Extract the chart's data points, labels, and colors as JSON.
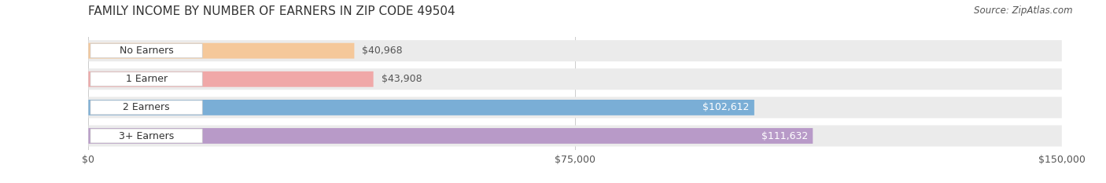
{
  "title": "FAMILY INCOME BY NUMBER OF EARNERS IN ZIP CODE 49504",
  "source": "Source: ZipAtlas.com",
  "categories": [
    "No Earners",
    "1 Earner",
    "2 Earners",
    "3+ Earners"
  ],
  "values": [
    40968,
    43908,
    102612,
    111632
  ],
  "labels": [
    "$40,968",
    "$43,908",
    "$102,612",
    "$111,632"
  ],
  "bar_colors": [
    "#f5c89a",
    "#f0a8a8",
    "#7aaed6",
    "#b89ac8"
  ],
  "row_bg_colors": [
    "#f5f5f5",
    "#f5f5f5",
    "#f5f5f5",
    "#f5f5f5"
  ],
  "label_bg_color": "#ffffff",
  "xmax": 150000,
  "xticks": [
    0,
    75000,
    150000
  ],
  "xticklabels": [
    "$0",
    "$75,000",
    "$150,000"
  ],
  "title_fontsize": 11,
  "source_fontsize": 8.5,
  "label_fontsize": 9,
  "cat_fontsize": 9,
  "background_color": "#ffffff",
  "fig_width": 14.06,
  "fig_height": 2.33
}
